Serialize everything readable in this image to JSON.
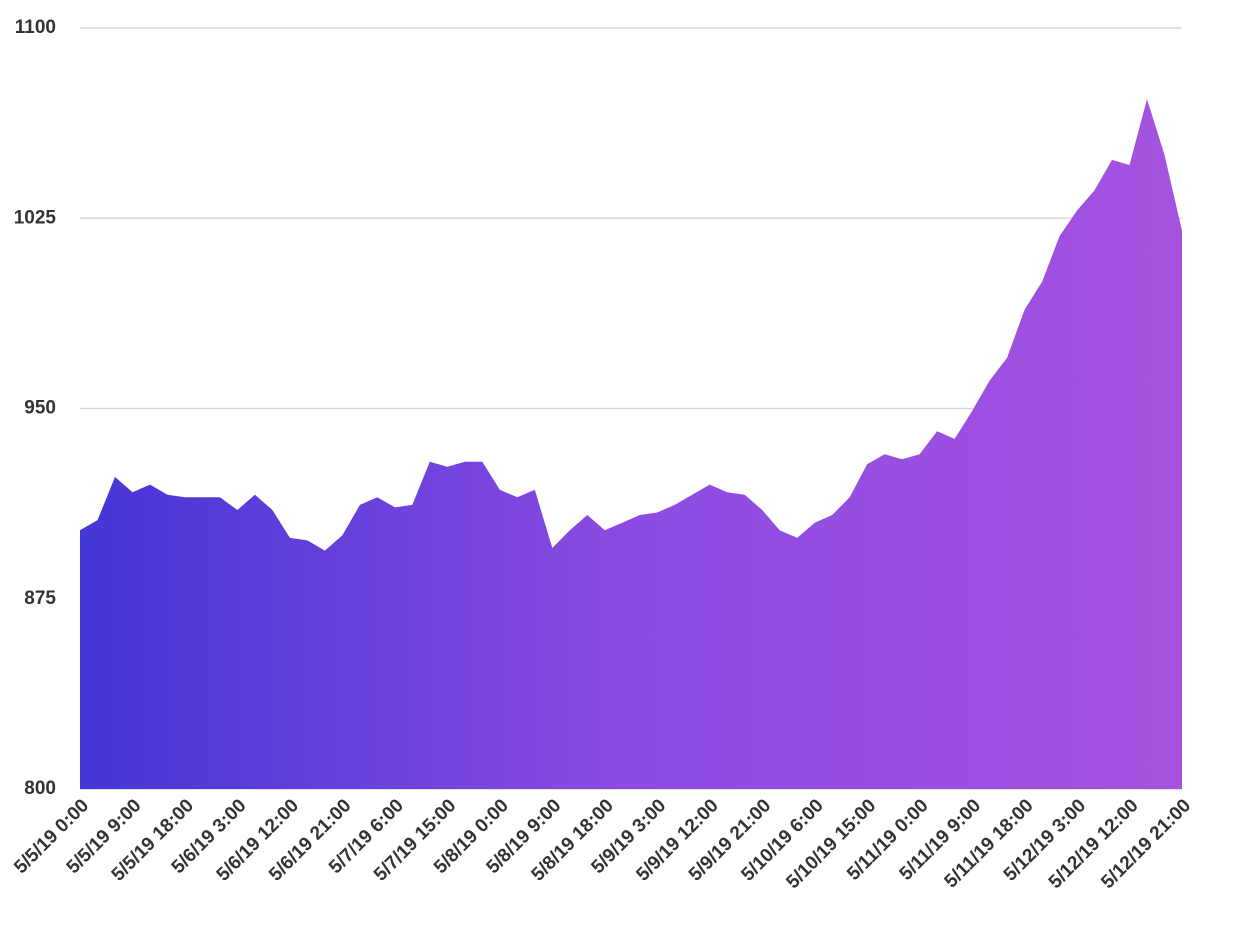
{
  "chart_data": {
    "type": "area",
    "categories": [
      "5/5/19 0:00",
      null,
      null,
      "5/5/19 9:00",
      null,
      null,
      "5/5/19 18:00",
      null,
      null,
      "5/6/19 3:00",
      null,
      null,
      "5/6/19 12:00",
      null,
      null,
      "5/6/19 21:00",
      null,
      null,
      "5/7/19 6:00",
      null,
      null,
      "5/7/19 15:00",
      null,
      null,
      "5/8/19 0:00",
      null,
      null,
      "5/8/19 9:00",
      null,
      null,
      "5/8/19 18:00",
      null,
      null,
      "5/9/19 3:00",
      null,
      null,
      "5/9/19 12:00",
      null,
      null,
      "5/9/19 21:00",
      null,
      null,
      "5/10/19 6:00",
      null,
      null,
      "5/10/19 15:00",
      null,
      null,
      "5/11/19 0:00",
      null,
      null,
      "5/11/19 9:00",
      null,
      null,
      "5/11/19 18:00",
      null,
      null,
      "5/12/19 3:00",
      null,
      null,
      "5/12/19 12:00",
      null,
      null,
      "5/12/19 21:00"
    ],
    "values": [
      902,
      906,
      923,
      917,
      920,
      916,
      915,
      915,
      915,
      910,
      916,
      910,
      899,
      898,
      894,
      900,
      912,
      915,
      911,
      912,
      929,
      927,
      929,
      929,
      918,
      915,
      918,
      895,
      902,
      908,
      902,
      905,
      908,
      909,
      912,
      916,
      920,
      917,
      916,
      910,
      902,
      899,
      905,
      908,
      915,
      928,
      932,
      930,
      932,
      941,
      938,
      949,
      961,
      970,
      989,
      1000,
      1018,
      1028,
      1036,
      1048,
      1046,
      1072,
      1050,
      1020
    ],
    "colors": [
      "#4436d6",
      "#8c4be2",
      "#a552e0"
    ],
    "ylim": [
      800,
      1100
    ],
    "yticks": [
      800,
      875,
      950,
      1025,
      1100
    ],
    "grid": true
  }
}
